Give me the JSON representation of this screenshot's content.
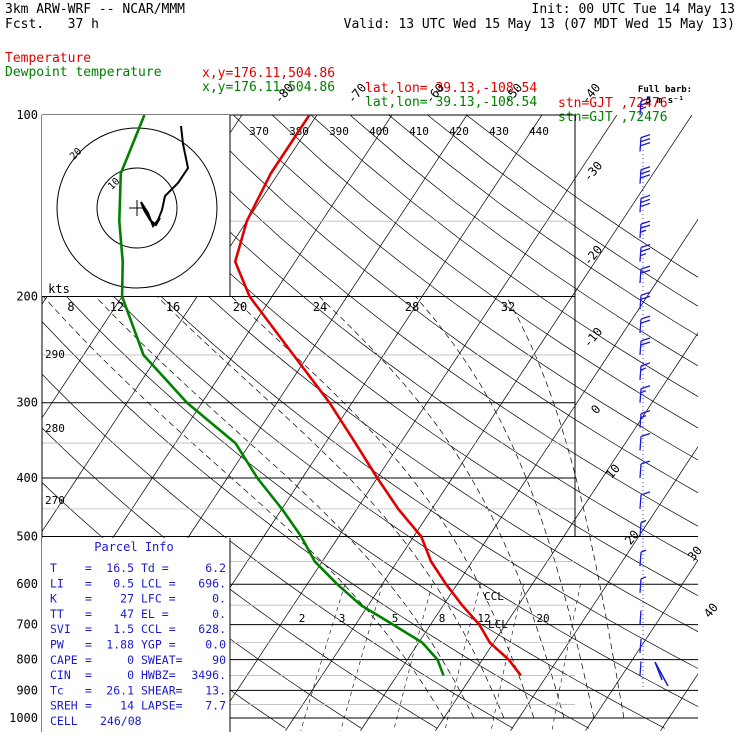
{
  "header": {
    "title": "3km ARW-WRF -- NCAR/MMM",
    "forecast": "Fcst.   37 h",
    "init": "Init: 00 UTC Tue 14 May 13",
    "valid": "Valid: 13 UTC Wed 15 May 13 (07 MDT Wed 15 May 13)"
  },
  "legend": {
    "temperature": {
      "label": "Temperature",
      "xy": "x,y=176.11,504.86",
      "latlon": "lat,lon= 39.13,-108.54",
      "stn": "stn=GJT ,72476",
      "color": "#e00000"
    },
    "dewpoint": {
      "label": "Dewpoint temperature",
      "xy": "x,y=176.11,504.86",
      "latlon": "lat,lon= 39.13,-108.54",
      "stn": "stn=GJT ,72476",
      "color": "#008000"
    }
  },
  "barb_key": {
    "title": "Full barb:",
    "value": "5 m s⁻¹"
  },
  "parcel_info": {
    "title": "Parcel Info",
    "rows": [
      {
        "l": "T",
        "lv": "16.5",
        "r": "Td =",
        "rv": "6.2"
      },
      {
        "l": "LI",
        "lv": "0.5",
        "r": "LCL =",
        "rv": "696."
      },
      {
        "l": "K",
        "lv": "27",
        "r": "LFC =",
        "rv": "0."
      },
      {
        "l": "TT",
        "lv": "47",
        "r": "EL =",
        "rv": "0."
      },
      {
        "l": "SVI",
        "lv": "1.5",
        "r": "CCL =",
        "rv": "628."
      },
      {
        "l": "PW",
        "lv": "1.88",
        "r": "YGP =",
        "rv": "0.0"
      },
      {
        "l": "CAPE",
        "lv": "0",
        "r": "SWEAT=",
        "rv": "90"
      },
      {
        "l": "CIN",
        "lv": "0",
        "r": "HWBZ=",
        "rv": "3496."
      },
      {
        "l": "Tc",
        "lv": "26.1",
        "r": "SHEAR=",
        "rv": "13."
      },
      {
        "l": "SREH",
        "lv": "14",
        "r": "LAPSE=",
        "rv": "7.7"
      },
      {
        "l": "CELL",
        "lv": "246/08",
        "r": "",
        "rv": ""
      }
    ]
  },
  "chart_data": {
    "type": "line",
    "subtype": "skew-T log-p sounding",
    "y_axis": {
      "label": "Pressure (hPa)",
      "scale": "log",
      "ticks": [
        100,
        200,
        300,
        400,
        500,
        600,
        700,
        800,
        900,
        1000
      ]
    },
    "isotherm_labels": [
      "-80",
      "-70",
      "-60",
      "-50",
      "-40",
      "-30",
      "-20",
      "-10",
      "0",
      "10",
      "20",
      "30",
      "40"
    ],
    "mixing_ratio_labels": [
      "2",
      "3",
      "5",
      "8",
      "12",
      "20"
    ],
    "theta_labels": [
      "370",
      "380",
      "390",
      "400",
      "410",
      "420",
      "430",
      "440"
    ],
    "theta_left_labels": [
      "290",
      "280",
      "270"
    ],
    "hodograph_ring_labels": [
      "kts",
      "8",
      "12",
      "16",
      "20",
      "24",
      "28",
      "32"
    ],
    "hodograph_small_labels": [
      "20",
      "10"
    ],
    "level_annotations": [
      "CCL",
      "LCL"
    ],
    "series": [
      {
        "name": "Temperature",
        "color": "#e00000",
        "points": [
          [
            850,
            16.5
          ],
          [
            800,
            13.5
          ],
          [
            750,
            9.5
          ],
          [
            700,
            6.5
          ],
          [
            650,
            2.5
          ],
          [
            600,
            -1.5
          ],
          [
            550,
            -5.5
          ],
          [
            500,
            -9
          ],
          [
            450,
            -14.5
          ],
          [
            400,
            -20
          ],
          [
            350,
            -26
          ],
          [
            300,
            -33
          ],
          [
            250,
            -42
          ],
          [
            200,
            -53
          ],
          [
            175,
            -58
          ],
          [
            150,
            -60
          ],
          [
            125,
            -61
          ],
          [
            110,
            -61
          ],
          [
            100,
            -61
          ]
        ]
      },
      {
        "name": "Dewpoint temperature",
        "color": "#008000",
        "points": [
          [
            850,
            6.2
          ],
          [
            800,
            4
          ],
          [
            750,
            0.5
          ],
          [
            700,
            -5
          ],
          [
            650,
            -11
          ],
          [
            600,
            -16
          ],
          [
            550,
            -21
          ],
          [
            500,
            -25
          ],
          [
            450,
            -30
          ],
          [
            400,
            -36
          ],
          [
            350,
            -42
          ],
          [
            300,
            -52
          ],
          [
            250,
            -62
          ],
          [
            200,
            -70
          ],
          [
            175,
            -73
          ],
          [
            150,
            -77
          ],
          [
            125,
            -81
          ],
          [
            100,
            -83
          ]
        ]
      }
    ],
    "winds_ms": [
      {
        "p": 100,
        "spd": 14
      },
      {
        "p": 115,
        "spd": 15
      },
      {
        "p": 130,
        "spd": 16
      },
      {
        "p": 145,
        "spd": 15
      },
      {
        "p": 160,
        "spd": 14
      },
      {
        "p": 175,
        "spd": 13
      },
      {
        "p": 190,
        "spd": 12
      },
      {
        "p": 210,
        "spd": 11
      },
      {
        "p": 230,
        "spd": 10
      },
      {
        "p": 250,
        "spd": 10
      },
      {
        "p": 275,
        "spd": 9
      },
      {
        "p": 300,
        "spd": 9
      },
      {
        "p": 330,
        "spd": 8
      },
      {
        "p": 360,
        "spd": 7
      },
      {
        "p": 400,
        "spd": 6
      },
      {
        "p": 450,
        "spd": 5
      },
      {
        "p": 500,
        "spd": 4
      },
      {
        "p": 560,
        "spd": 3
      },
      {
        "p": 620,
        "spd": 3
      },
      {
        "p": 700,
        "spd": 2
      },
      {
        "p": 780,
        "spd": 2
      },
      {
        "p": 850,
        "spd": 1
      }
    ]
  }
}
